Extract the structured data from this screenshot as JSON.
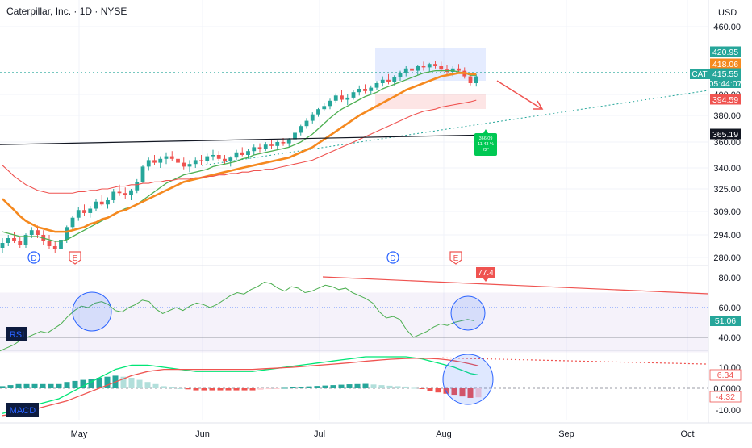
{
  "header": {
    "title": "Caterpillar, Inc. · 1D · NYSE",
    "currency": "USD"
  },
  "chart_data": [
    {
      "type": "candlestick",
      "title": "Caterpillar, Inc. · 1D · NYSE",
      "x_ticks": [
        "May",
        "Jun",
        "Jul",
        "Aug",
        "Sep",
        "Oct"
      ],
      "y_ticks": [
        "460.00",
        "400.00",
        "380.00",
        "360.00",
        "340.00",
        "325.00",
        "309.00",
        "294.00",
        "280.00"
      ],
      "price_labels": [
        {
          "text": "420.95",
          "value": 420.95,
          "color": "#26a69a"
        },
        {
          "text": "418.06",
          "value": 418.06,
          "color": "#f5891f"
        },
        {
          "text": "415.55",
          "value": 415.55,
          "color": "#26a69a"
        },
        {
          "text": "05:44:07",
          "value": 413.2,
          "color": "#26a69a"
        },
        {
          "text": "394.59",
          "value": 394.59,
          "color": "#ef5350"
        },
        {
          "text": "365.19",
          "value": 365.19,
          "color": "#131722"
        }
      ],
      "symbol_tag": "CAT",
      "event_markers": [
        {
          "text": "D",
          "date": "2024-04-19",
          "color": "#2962ff"
        },
        {
          "text": "E",
          "date": "2024-04-25",
          "color": "#ef5350"
        },
        {
          "text": "D",
          "date": "2024-07-19",
          "color": "#2962ff"
        },
        {
          "text": "E",
          "date": "2024-08-06",
          "color": "#ef5350"
        }
      ],
      "measure_label": [
        "366.09",
        "11.43 %",
        "22°"
      ],
      "series": [
        {
          "kind": "candles",
          "ohlc": [
            [
              286,
              292,
              283,
              289
            ],
            [
              289,
              294,
              287,
              292
            ],
            [
              292,
              296,
              289,
              290
            ],
            [
              290,
              293,
              286,
              288
            ],
            [
              288,
              295,
              286,
              294
            ],
            [
              294,
              299,
              292,
              297
            ],
            [
              297,
              300,
              292,
              294
            ],
            [
              294,
              297,
              288,
              290
            ],
            [
              290,
              294,
              285,
              287
            ],
            [
              287,
              290,
              283,
              285
            ],
            [
              285,
              292,
              284,
              291
            ],
            [
              291,
              300,
              289,
              299
            ],
            [
              299,
              306,
              297,
              305
            ],
            [
              305,
              312,
              303,
              310
            ],
            [
              310,
              314,
              306,
              308
            ],
            [
              308,
              313,
              305,
              311
            ],
            [
              311,
              318,
              309,
              316
            ],
            [
              316,
              321,
              313,
              314
            ],
            [
              314,
              319,
              311,
              317
            ],
            [
              317,
              325,
              315,
              323
            ],
            [
              323,
              328,
              320,
              322
            ],
            [
              322,
              326,
              318,
              321
            ],
            [
              321,
              325,
              317,
              324
            ],
            [
              324,
              332,
              322,
              330
            ],
            [
              330,
              342,
              329,
              341
            ],
            [
              341,
              348,
              338,
              346
            ],
            [
              346,
              350,
              342,
              344
            ],
            [
              344,
              349,
              340,
              347
            ],
            [
              347,
              352,
              343,
              349
            ],
            [
              349,
              353,
              345,
              347
            ],
            [
              347,
              351,
              342,
              344
            ],
            [
              344,
              348,
              339,
              341
            ],
            [
              341,
              346,
              337,
              343
            ],
            [
              343,
              348,
              340,
              346
            ],
            [
              346,
              350,
              342,
              345
            ],
            [
              345,
              351,
              343,
              349
            ],
            [
              349,
              354,
              346,
              350
            ],
            [
              350,
              353,
              345,
              347
            ],
            [
              347,
              350,
              343,
              345
            ],
            [
              345,
              349,
              341,
              348
            ],
            [
              348,
              354,
              346,
              352
            ],
            [
              352,
              356,
              349,
              350
            ],
            [
              350,
              355,
              347,
              353
            ],
            [
              353,
              358,
              350,
              356
            ],
            [
              356,
              359,
              352,
              355
            ],
            [
              355,
              360,
              353,
              358
            ],
            [
              358,
              362,
              355,
              357
            ],
            [
              357,
              361,
              354,
              360
            ],
            [
              360,
              363,
              357,
              359
            ],
            [
              359,
              363,
              356,
              362
            ],
            [
              362,
              368,
              360,
              367
            ],
            [
              367,
              373,
              365,
              372
            ],
            [
              372,
              378,
              370,
              376
            ],
            [
              376,
              383,
              374,
              381
            ],
            [
              381,
              387,
              379,
              386
            ],
            [
              386,
              392,
              384,
              389
            ],
            [
              389,
              396,
              386,
              394
            ],
            [
              394,
              401,
              392,
              399
            ],
            [
              399,
              404,
              393,
              395
            ],
            [
              395,
              400,
              390,
              397
            ],
            [
              397,
              404,
              395,
              402
            ],
            [
              402,
              408,
              399,
              405
            ],
            [
              405,
              409,
              401,
              403
            ],
            [
              403,
              408,
              400,
              406
            ],
            [
              406,
              412,
              404,
              410
            ],
            [
              410,
              416,
              407,
              413
            ],
            [
              413,
              418,
              409,
              411
            ],
            [
              411,
              417,
              408,
              415
            ],
            [
              415,
              421,
              412,
              419
            ],
            [
              419,
              425,
              416,
              423
            ],
            [
              423,
              427,
              418,
              421
            ],
            [
              421,
              426,
              417,
              425
            ],
            [
              425,
              429,
              421,
              424
            ],
            [
              424,
              428,
              420,
              427
            ],
            [
              427,
              430,
              423,
              425
            ],
            [
              425,
              429,
              420,
              422
            ],
            [
              422,
              426,
              417,
              420
            ],
            [
              420,
              425,
              416,
              423
            ],
            [
              423,
              427,
              419,
              421
            ],
            [
              421,
              424,
              414,
              416
            ],
            [
              416,
              419,
              408,
              410
            ],
            [
              410,
              418,
              407,
              416
            ]
          ]
        },
        {
          "kind": "line",
          "name": "",
          "color": "#4caf50",
          "values": [
            296,
            295,
            294,
            293,
            293,
            293,
            293,
            292,
            291,
            290,
            290,
            291,
            293,
            295,
            297,
            299,
            301,
            303,
            305,
            307,
            309,
            311,
            312,
            314,
            317,
            320,
            323,
            326,
            329,
            331,
            333,
            335,
            336,
            337,
            338,
            339,
            341,
            342,
            343,
            344,
            345,
            347,
            348,
            350,
            351,
            352,
            353,
            354,
            355,
            356,
            358,
            360,
            363,
            366,
            370,
            374,
            378,
            382,
            386,
            389,
            392,
            395,
            398,
            400,
            402,
            405,
            407,
            409,
            411,
            413,
            415,
            417,
            419,
            420,
            421,
            421,
            421,
            421,
            420,
            419,
            417,
            417
          ]
        },
        {
          "kind": "line",
          "name": "",
          "color": "#f5891f",
          "values": [
            318,
            314,
            310,
            306,
            303,
            301,
            299,
            298,
            297,
            296,
            296,
            296,
            297,
            298,
            299,
            301,
            302,
            304,
            305,
            307,
            309,
            310,
            312,
            314,
            316,
            318,
            320,
            322,
            324,
            326,
            328,
            330,
            331,
            332,
            333,
            334,
            335,
            336,
            337,
            338,
            339,
            340,
            341,
            342,
            343,
            344,
            345,
            346,
            347,
            348,
            350,
            352,
            354,
            356,
            359,
            362,
            365,
            368,
            371,
            374,
            377,
            380,
            383,
            386,
            389,
            392,
            395,
            398,
            401,
            404,
            406,
            408,
            410,
            412,
            414,
            416,
            417,
            418,
            419,
            419,
            418,
            418
          ]
        },
        {
          "kind": "line",
          "name": "",
          "color": "#ef5350",
          "values": [
            342,
            338,
            334,
            331,
            328,
            326,
            324,
            323,
            322,
            322,
            322,
            322,
            322,
            323,
            323,
            324,
            324,
            325,
            325,
            326,
            327,
            327,
            328,
            328,
            329,
            329,
            330,
            330,
            331,
            331,
            332,
            332,
            332,
            333,
            333,
            334,
            334,
            335,
            335,
            336,
            336,
            337,
            337,
            338,
            338,
            339,
            339,
            340,
            341,
            342,
            343,
            344,
            345,
            346,
            348,
            350,
            352,
            354,
            356,
            358,
            360,
            362,
            364,
            366,
            368,
            370,
            372,
            374,
            376,
            378,
            380,
            382,
            384,
            385,
            386,
            388,
            389,
            390,
            391,
            392,
            393,
            394.5
          ]
        },
        {
          "kind": "line",
          "name": "",
          "color": "#131722",
          "start": 358,
          "end": 365.19
        }
      ]
    },
    {
      "type": "line",
      "title": "RSI",
      "y_ticks": [
        "80.00",
        "60.00",
        "40.00"
      ],
      "value_labels": [
        {
          "text": "77.4",
          "color": "#ef5350"
        },
        {
          "text": "51.06",
          "color": "#26a69a"
        }
      ],
      "levels": {
        "upper": 70,
        "middle": 50,
        "lower": 30
      },
      "values": [
        31,
        33,
        35,
        38,
        40,
        42,
        44,
        43,
        46,
        49,
        54,
        58,
        61,
        60,
        63,
        64,
        62,
        58,
        57,
        60,
        62,
        65,
        64,
        59,
        56,
        58,
        60,
        58,
        61,
        63,
        62,
        60,
        62,
        65,
        68,
        70,
        69,
        72,
        74,
        77,
        76,
        73,
        71,
        74,
        73,
        70,
        71,
        73,
        75,
        74,
        72,
        73,
        70,
        68,
        66,
        63,
        57,
        53,
        54,
        52,
        45,
        40,
        42,
        44,
        47,
        49,
        48,
        50,
        51,
        52,
        51.06
      ]
    },
    {
      "type": "bar",
      "title": "MACD",
      "y_ticks": [
        "10.00",
        "0.0000",
        "-10.00"
      ],
      "value_labels": [
        {
          "text": "6.34",
          "color": "#ef5350"
        },
        {
          "text": "-4.32",
          "color": "#ef5350"
        }
      ],
      "macd_line": [
        -12,
        -11,
        -10,
        -9,
        -8,
        -7,
        -6,
        -5,
        -3,
        -1,
        1,
        3,
        5,
        7,
        9,
        10,
        11,
        11,
        11,
        10.5,
        10,
        9.5,
        9,
        8.5,
        8,
        8,
        8,
        8,
        8,
        8,
        8,
        8,
        8.5,
        9,
        9.5,
        10,
        10.5,
        11,
        11.5,
        12,
        12.5,
        13,
        13.5,
        14,
        14.5,
        15,
        15,
        15,
        15,
        15,
        15,
        14.5,
        14,
        13,
        12,
        11,
        10,
        8.5,
        7,
        6.34
      ],
      "signal_line": [
        -13,
        -12.5,
        -12,
        -11,
        -10,
        -9,
        -8,
        -7,
        -6,
        -4.5,
        -3,
        -1.5,
        0,
        1.5,
        3,
        4.5,
        6,
        7,
        8,
        8.5,
        9,
        9,
        9,
        9,
        9,
        9,
        9,
        9,
        9,
        9,
        9,
        9,
        9.2,
        9.4,
        9.6,
        9.8,
        10,
        10.3,
        10.6,
        10.9,
        11.2,
        11.5,
        11.8,
        12.1,
        12.5,
        12.9,
        13.2,
        13.5,
        13.8,
        14,
        14.2,
        14.3,
        14.3,
        14.2,
        14,
        13.6,
        13.1,
        12.4,
        11.6,
        10.66
      ],
      "histogram": [
        1,
        1.5,
        2,
        2,
        2,
        2,
        2,
        2,
        3,
        3.5,
        4,
        4.5,
        5,
        5.5,
        6,
        5.5,
        5,
        4,
        3,
        2,
        1,
        0.5,
        0,
        -0.5,
        -1,
        -1,
        -1,
        -1,
        -1,
        -1,
        -1,
        -1,
        -0.7,
        -0.4,
        -0.1,
        0.2,
        0.5,
        0.7,
        0.9,
        1.1,
        1.3,
        1.5,
        1.7,
        1.9,
        2,
        2.1,
        1.8,
        1.5,
        1.2,
        1,
        0.8,
        0.2,
        -0.3,
        -1.2,
        -2,
        -2.6,
        -3.1,
        -3.9,
        -4.6,
        -4.32
      ]
    }
  ]
}
